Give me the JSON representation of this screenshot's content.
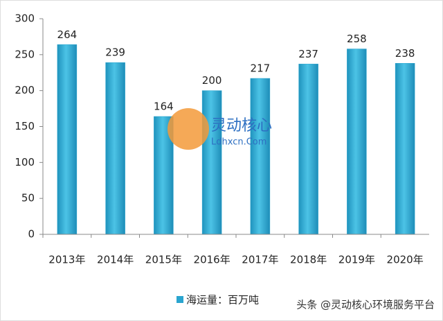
{
  "chart_data": {
    "type": "bar",
    "categories": [
      "2013年",
      "2014年",
      "2015年",
      "2016年",
      "2017年",
      "2018年",
      "2019年",
      "2020年"
    ],
    "series": [
      {
        "name": "海运量：百万吨",
        "color": "#2aa5cf",
        "values": [
          264,
          239,
          164,
          200,
          217,
          237,
          258,
          238
        ]
      }
    ],
    "ylim": [
      0,
      300
    ],
    "yticks": [
      0,
      50,
      100,
      150,
      200,
      250,
      300
    ],
    "watermark": [
      "灵动核心",
      "Ldhxcn.Com"
    ],
    "credit": "头条 @灵动核心环境服务平台"
  }
}
